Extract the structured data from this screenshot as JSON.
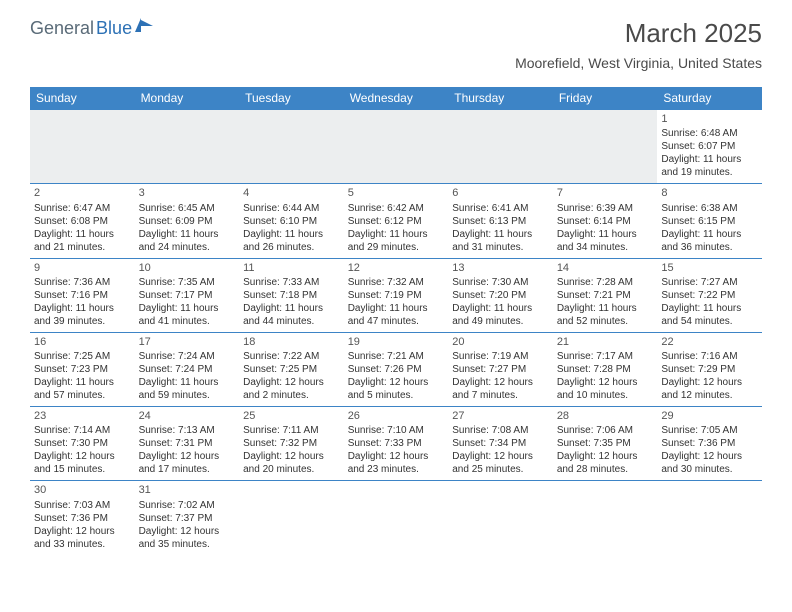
{
  "brand": {
    "part1": "General",
    "part2": "Blue",
    "accent_color": "#2d71b5",
    "text_color": "#5a6b78"
  },
  "title": "March 2025",
  "location": "Moorefield, West Virginia, United States",
  "colors": {
    "header_bg": "#3d84c6",
    "header_fg": "#ffffff",
    "grid_color": "#3d84c6",
    "empty_bg": "#eceeef",
    "text": "#333333"
  },
  "fonts": {
    "title_size": 26,
    "location_size": 14,
    "th_size": 12,
    "cell_size": 10
  },
  "day_headers": [
    "Sunday",
    "Monday",
    "Tuesday",
    "Wednesday",
    "Thursday",
    "Friday",
    "Saturday"
  ],
  "weeks": [
    [
      null,
      null,
      null,
      null,
      null,
      null,
      {
        "n": "1",
        "sr": "Sunrise: 6:48 AM",
        "ss": "Sunset: 6:07 PM",
        "d1": "Daylight: 11 hours",
        "d2": "and 19 minutes."
      }
    ],
    [
      {
        "n": "2",
        "sr": "Sunrise: 6:47 AM",
        "ss": "Sunset: 6:08 PM",
        "d1": "Daylight: 11 hours",
        "d2": "and 21 minutes."
      },
      {
        "n": "3",
        "sr": "Sunrise: 6:45 AM",
        "ss": "Sunset: 6:09 PM",
        "d1": "Daylight: 11 hours",
        "d2": "and 24 minutes."
      },
      {
        "n": "4",
        "sr": "Sunrise: 6:44 AM",
        "ss": "Sunset: 6:10 PM",
        "d1": "Daylight: 11 hours",
        "d2": "and 26 minutes."
      },
      {
        "n": "5",
        "sr": "Sunrise: 6:42 AM",
        "ss": "Sunset: 6:12 PM",
        "d1": "Daylight: 11 hours",
        "d2": "and 29 minutes."
      },
      {
        "n": "6",
        "sr": "Sunrise: 6:41 AM",
        "ss": "Sunset: 6:13 PM",
        "d1": "Daylight: 11 hours",
        "d2": "and 31 minutes."
      },
      {
        "n": "7",
        "sr": "Sunrise: 6:39 AM",
        "ss": "Sunset: 6:14 PM",
        "d1": "Daylight: 11 hours",
        "d2": "and 34 minutes."
      },
      {
        "n": "8",
        "sr": "Sunrise: 6:38 AM",
        "ss": "Sunset: 6:15 PM",
        "d1": "Daylight: 11 hours",
        "d2": "and 36 minutes."
      }
    ],
    [
      {
        "n": "9",
        "sr": "Sunrise: 7:36 AM",
        "ss": "Sunset: 7:16 PM",
        "d1": "Daylight: 11 hours",
        "d2": "and 39 minutes."
      },
      {
        "n": "10",
        "sr": "Sunrise: 7:35 AM",
        "ss": "Sunset: 7:17 PM",
        "d1": "Daylight: 11 hours",
        "d2": "and 41 minutes."
      },
      {
        "n": "11",
        "sr": "Sunrise: 7:33 AM",
        "ss": "Sunset: 7:18 PM",
        "d1": "Daylight: 11 hours",
        "d2": "and 44 minutes."
      },
      {
        "n": "12",
        "sr": "Sunrise: 7:32 AM",
        "ss": "Sunset: 7:19 PM",
        "d1": "Daylight: 11 hours",
        "d2": "and 47 minutes."
      },
      {
        "n": "13",
        "sr": "Sunrise: 7:30 AM",
        "ss": "Sunset: 7:20 PM",
        "d1": "Daylight: 11 hours",
        "d2": "and 49 minutes."
      },
      {
        "n": "14",
        "sr": "Sunrise: 7:28 AM",
        "ss": "Sunset: 7:21 PM",
        "d1": "Daylight: 11 hours",
        "d2": "and 52 minutes."
      },
      {
        "n": "15",
        "sr": "Sunrise: 7:27 AM",
        "ss": "Sunset: 7:22 PM",
        "d1": "Daylight: 11 hours",
        "d2": "and 54 minutes."
      }
    ],
    [
      {
        "n": "16",
        "sr": "Sunrise: 7:25 AM",
        "ss": "Sunset: 7:23 PM",
        "d1": "Daylight: 11 hours",
        "d2": "and 57 minutes."
      },
      {
        "n": "17",
        "sr": "Sunrise: 7:24 AM",
        "ss": "Sunset: 7:24 PM",
        "d1": "Daylight: 11 hours",
        "d2": "and 59 minutes."
      },
      {
        "n": "18",
        "sr": "Sunrise: 7:22 AM",
        "ss": "Sunset: 7:25 PM",
        "d1": "Daylight: 12 hours",
        "d2": "and 2 minutes."
      },
      {
        "n": "19",
        "sr": "Sunrise: 7:21 AM",
        "ss": "Sunset: 7:26 PM",
        "d1": "Daylight: 12 hours",
        "d2": "and 5 minutes."
      },
      {
        "n": "20",
        "sr": "Sunrise: 7:19 AM",
        "ss": "Sunset: 7:27 PM",
        "d1": "Daylight: 12 hours",
        "d2": "and 7 minutes."
      },
      {
        "n": "21",
        "sr": "Sunrise: 7:17 AM",
        "ss": "Sunset: 7:28 PM",
        "d1": "Daylight: 12 hours",
        "d2": "and 10 minutes."
      },
      {
        "n": "22",
        "sr": "Sunrise: 7:16 AM",
        "ss": "Sunset: 7:29 PM",
        "d1": "Daylight: 12 hours",
        "d2": "and 12 minutes."
      }
    ],
    [
      {
        "n": "23",
        "sr": "Sunrise: 7:14 AM",
        "ss": "Sunset: 7:30 PM",
        "d1": "Daylight: 12 hours",
        "d2": "and 15 minutes."
      },
      {
        "n": "24",
        "sr": "Sunrise: 7:13 AM",
        "ss": "Sunset: 7:31 PM",
        "d1": "Daylight: 12 hours",
        "d2": "and 17 minutes."
      },
      {
        "n": "25",
        "sr": "Sunrise: 7:11 AM",
        "ss": "Sunset: 7:32 PM",
        "d1": "Daylight: 12 hours",
        "d2": "and 20 minutes."
      },
      {
        "n": "26",
        "sr": "Sunrise: 7:10 AM",
        "ss": "Sunset: 7:33 PM",
        "d1": "Daylight: 12 hours",
        "d2": "and 23 minutes."
      },
      {
        "n": "27",
        "sr": "Sunrise: 7:08 AM",
        "ss": "Sunset: 7:34 PM",
        "d1": "Daylight: 12 hours",
        "d2": "and 25 minutes."
      },
      {
        "n": "28",
        "sr": "Sunrise: 7:06 AM",
        "ss": "Sunset: 7:35 PM",
        "d1": "Daylight: 12 hours",
        "d2": "and 28 minutes."
      },
      {
        "n": "29",
        "sr": "Sunrise: 7:05 AM",
        "ss": "Sunset: 7:36 PM",
        "d1": "Daylight: 12 hours",
        "d2": "and 30 minutes."
      }
    ],
    [
      {
        "n": "30",
        "sr": "Sunrise: 7:03 AM",
        "ss": "Sunset: 7:36 PM",
        "d1": "Daylight: 12 hours",
        "d2": "and 33 minutes."
      },
      {
        "n": "31",
        "sr": "Sunrise: 7:02 AM",
        "ss": "Sunset: 7:37 PM",
        "d1": "Daylight: 12 hours",
        "d2": "and 35 minutes."
      },
      null,
      null,
      null,
      null,
      null
    ]
  ]
}
